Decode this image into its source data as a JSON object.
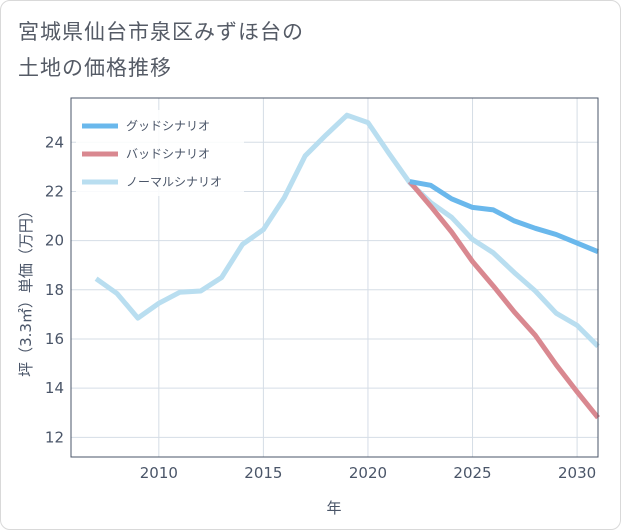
{
  "title_lines": [
    "宮城県仙台市泉区みずほ台の",
    "土地の価格推移"
  ],
  "chart_data": {
    "type": "line",
    "title": "宮城県仙台市泉区みずほ台の土地の価格推移",
    "xlabel": "年",
    "ylabel": "坪（3.3㎡）単価（万円）",
    "xlim": [
      2005.8,
      2031
    ],
    "ylim": [
      11.2,
      25.8
    ],
    "xticks": [
      2010,
      2015,
      2020,
      2025,
      2030
    ],
    "yticks": [
      12,
      14,
      16,
      18,
      20,
      22,
      24
    ],
    "legend_position": "top-left",
    "series": [
      {
        "name": "グッドシナリオ",
        "color": "#6ab8ec",
        "x": [
          2022,
          2023,
          2024,
          2025,
          2026,
          2027,
          2028,
          2029,
          2030,
          2031
        ],
        "y": [
          22.4,
          22.25,
          21.7,
          21.35,
          21.25,
          20.8,
          20.5,
          20.25,
          19.9,
          19.55
        ]
      },
      {
        "name": "バッドシナリオ",
        "color": "#d98890",
        "x": [
          2022,
          2023,
          2024,
          2025,
          2026,
          2027,
          2028,
          2029,
          2030,
          2031
        ],
        "y": [
          22.4,
          21.4,
          20.35,
          19.15,
          18.15,
          17.1,
          16.15,
          14.95,
          13.85,
          12.8
        ]
      },
      {
        "name": "ノーマルシナリオ",
        "color": "#b9def0",
        "x": [
          2007,
          2008,
          2009,
          2010,
          2011,
          2012,
          2013,
          2014,
          2015,
          2016,
          2017,
          2018,
          2019,
          2020,
          2021,
          2022,
          2023,
          2024,
          2025,
          2026,
          2027,
          2028,
          2029,
          2030,
          2031
        ],
        "y": [
          18.45,
          17.85,
          16.85,
          17.45,
          17.9,
          17.95,
          18.5,
          19.85,
          20.45,
          21.75,
          23.45,
          24.3,
          25.1,
          24.8,
          23.55,
          22.35,
          21.55,
          20.95,
          20.05,
          19.5,
          18.7,
          17.95,
          17.05,
          16.55,
          15.7
        ]
      }
    ]
  }
}
